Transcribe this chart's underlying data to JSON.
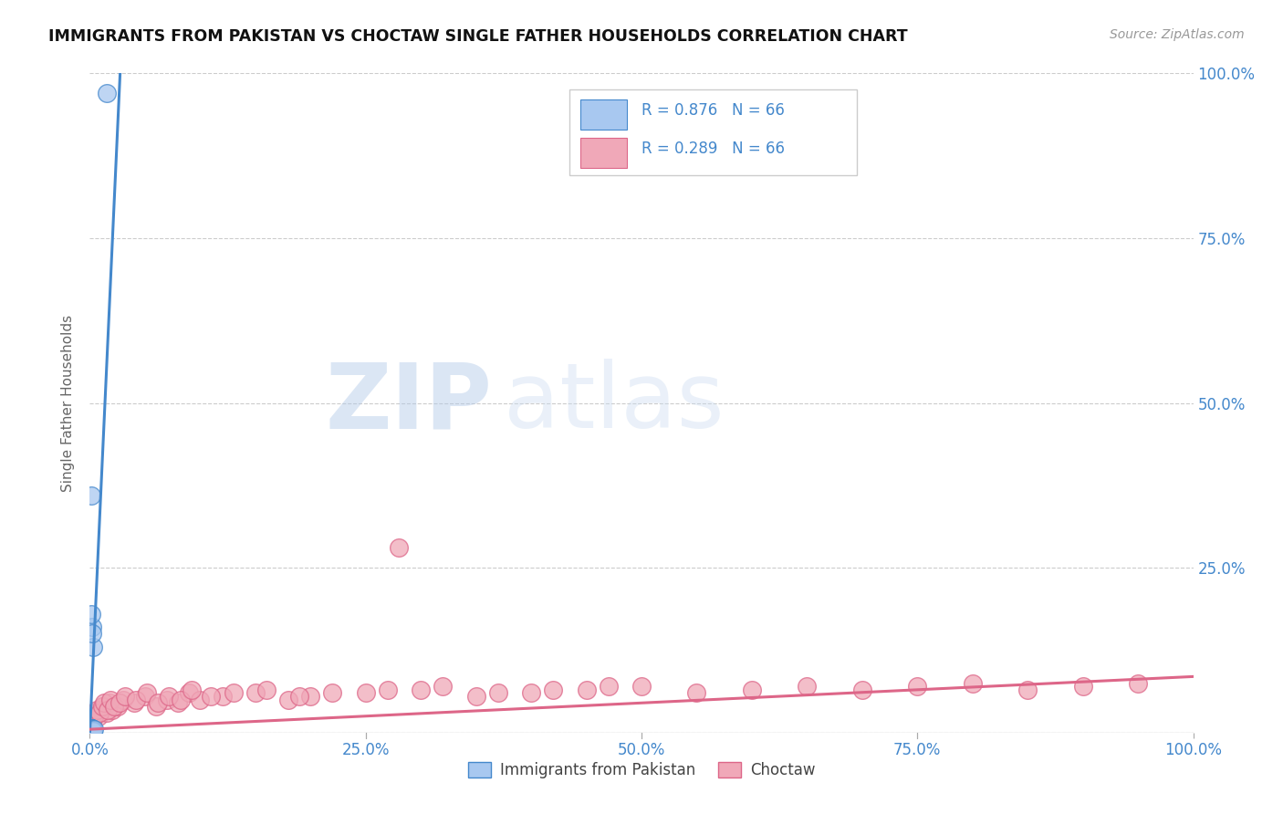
{
  "title": "IMMIGRANTS FROM PAKISTAN VS CHOCTAW SINGLE FATHER HOUSEHOLDS CORRELATION CHART",
  "source": "Source: ZipAtlas.com",
  "ylabel": "Single Father Households",
  "legend_label1": "Immigrants from Pakistan",
  "legend_label2": "Choctaw",
  "blue_color": "#a8c8f0",
  "pink_color": "#f0a8b8",
  "blue_line_color": "#4488cc",
  "pink_line_color": "#dd6688",
  "background": "#ffffff",
  "watermark_zip_color": "#b8cce8",
  "watermark_atlas_color": "#c8d8f0",
  "blue_scatter_x": [
    0.001,
    0.002,
    0.001,
    0.0005,
    0.001,
    0.0008,
    0.0015,
    0.001,
    0.002,
    0.001,
    0.0005,
    0.001,
    0.002,
    0.001,
    0.003,
    0.002,
    0.001,
    0.0005,
    0.001,
    0.002,
    0.001,
    0.0008,
    0.001,
    0.002,
    0.001,
    0.0006,
    0.001,
    0.002,
    0.001,
    0.001,
    0.0005,
    0.001,
    0.002,
    0.001,
    0.0004,
    0.001,
    0.002,
    0.001,
    0.0007,
    0.001,
    0.002,
    0.001,
    0.0009,
    0.001,
    0.002,
    0.001,
    0.0005,
    0.001,
    0.002,
    0.001,
    0.003,
    0.001,
    0.002,
    0.001,
    0.0005,
    0.001,
    0.002,
    0.003,
    0.0005,
    0.001,
    0.002,
    0.003,
    0.004,
    0.001,
    0.002,
    0.015
  ],
  "blue_scatter_y": [
    0.005,
    0.003,
    0.004,
    0.002,
    0.006,
    0.003,
    0.004,
    0.005,
    0.003,
    0.004,
    0.002,
    0.005,
    0.003,
    0.006,
    0.004,
    0.005,
    0.003,
    0.004,
    0.002,
    0.005,
    0.003,
    0.004,
    0.006,
    0.003,
    0.005,
    0.002,
    0.004,
    0.003,
    0.005,
    0.004,
    0.003,
    0.002,
    0.004,
    0.005,
    0.003,
    0.006,
    0.004,
    0.003,
    0.005,
    0.002,
    0.004,
    0.003,
    0.005,
    0.004,
    0.003,
    0.006,
    0.002,
    0.004,
    0.003,
    0.005,
    0.003,
    0.004,
    0.002,
    0.005,
    0.003,
    0.36,
    0.16,
    0.13,
    0.005,
    0.004,
    0.003,
    0.002,
    0.005,
    0.18,
    0.15,
    0.97
  ],
  "pink_scatter_x": [
    0.001,
    0.003,
    0.005,
    0.008,
    0.01,
    0.012,
    0.015,
    0.018,
    0.02,
    0.025,
    0.03,
    0.04,
    0.05,
    0.06,
    0.07,
    0.08,
    0.09,
    0.1,
    0.12,
    0.15,
    0.18,
    0.2,
    0.25,
    0.3,
    0.35,
    0.4,
    0.45,
    0.5,
    0.55,
    0.6,
    0.65,
    0.7,
    0.75,
    0.8,
    0.85,
    0.9,
    0.95,
    0.002,
    0.004,
    0.006,
    0.009,
    0.011,
    0.013,
    0.016,
    0.019,
    0.022,
    0.027,
    0.032,
    0.042,
    0.052,
    0.062,
    0.072,
    0.082,
    0.092,
    0.11,
    0.13,
    0.16,
    0.19,
    0.22,
    0.27,
    0.32,
    0.37,
    0.42,
    0.47,
    0.28
  ],
  "pink_scatter_y": [
    0.01,
    0.02,
    0.03,
    0.025,
    0.035,
    0.04,
    0.03,
    0.045,
    0.035,
    0.04,
    0.05,
    0.045,
    0.055,
    0.04,
    0.05,
    0.045,
    0.06,
    0.05,
    0.055,
    0.06,
    0.05,
    0.055,
    0.06,
    0.065,
    0.055,
    0.06,
    0.065,
    0.07,
    0.06,
    0.065,
    0.07,
    0.065,
    0.07,
    0.075,
    0.065,
    0.07,
    0.075,
    0.015,
    0.025,
    0.035,
    0.03,
    0.04,
    0.045,
    0.035,
    0.05,
    0.04,
    0.045,
    0.055,
    0.05,
    0.06,
    0.045,
    0.055,
    0.05,
    0.065,
    0.055,
    0.06,
    0.065,
    0.055,
    0.06,
    0.065,
    0.07,
    0.06,
    0.065,
    0.07,
    0.28
  ],
  "blue_regline_x": [
    0.0,
    0.028
  ],
  "blue_regline_y": [
    0.0,
    1.02
  ],
  "pink_regline_x": [
    0.0,
    1.0
  ],
  "pink_regline_y": [
    0.005,
    0.085
  ],
  "xlim": [
    0.0,
    1.0
  ],
  "ylim": [
    0.0,
    1.0
  ],
  "xticks": [
    0.0,
    0.25,
    0.5,
    0.75,
    1.0
  ],
  "xtick_labels": [
    "0.0%",
    "25.0%",
    "50.0%",
    "75.0%",
    "100.0%"
  ],
  "yticks_right": [
    0.25,
    0.5,
    0.75,
    1.0
  ],
  "ytick_labels_right": [
    "25.0%",
    "50.0%",
    "75.0%",
    "100.0%"
  ],
  "grid_yticks": [
    0.0,
    0.25,
    0.5,
    0.75,
    1.0
  ]
}
